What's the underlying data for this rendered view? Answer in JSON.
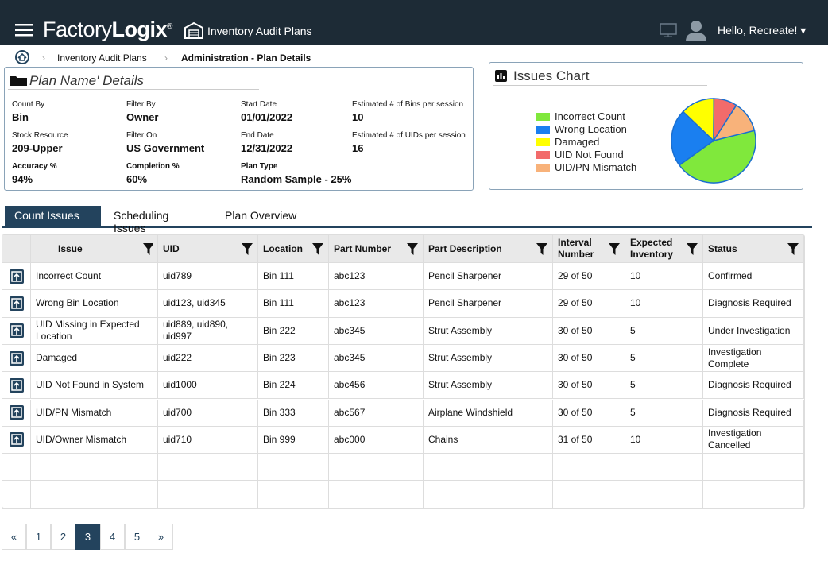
{
  "header": {
    "brand_light": "Factory",
    "brand_bold": "Logix",
    "brand_mark": "®",
    "page_title": "Inventory Audit Plans",
    "greeting": "Hello, Recreate!"
  },
  "breadcrumb": [
    "Inventory Audit Plans",
    "Administration - Plan Details"
  ],
  "plan": {
    "title": "Plan Name' Details",
    "fields": [
      {
        "label": "Count By",
        "value": "Bin"
      },
      {
        "label": "Filter By",
        "value": "Owner"
      },
      {
        "label": "Start Date",
        "value": "01/01/2022"
      },
      {
        "label": "Estimated # of Bins per session",
        "value": "10"
      },
      {
        "label": "Stock Resource",
        "value": "209-Upper"
      },
      {
        "label": "Filter On",
        "value": "US Government"
      },
      {
        "label": "End Date",
        "value": "12/31/2022"
      },
      {
        "label": "Estimated # of UIDs per session",
        "value": "16"
      },
      {
        "label": "Accuracy %",
        "value": "94%"
      },
      {
        "label": "Completion %",
        "value": "60%"
      },
      {
        "label": "Plan Type",
        "value": "Random Sample - 25%"
      }
    ]
  },
  "chart_data": {
    "type": "pie",
    "title": "Issues Chart",
    "categories": [
      "Incorrect Count",
      "Wrong Location",
      "Damaged",
      "UID Not Found",
      "UID/PN Mismatch"
    ],
    "values": [
      44,
      22,
      13,
      9,
      12
    ],
    "colors": [
      "#80e83c",
      "#1a7ff0",
      "#ffff00",
      "#f26b6b",
      "#f8b27a"
    ]
  },
  "tabs": [
    "Count Issues",
    "Scheduling Issues",
    "Plan Overview"
  ],
  "table": {
    "columns": [
      "Issue",
      "UID",
      "Location",
      "Part Number",
      "Part Description",
      "Interval Number",
      "Expected Inventory",
      "Status"
    ],
    "rows": [
      [
        "Incorrect Count",
        "uid789",
        "Bin 111",
        "abc123",
        "Pencil Sharpener",
        "29 of 50",
        "10",
        "Confirmed"
      ],
      [
        "Wrong Bin Location",
        "uid123, uid345",
        "Bin 111",
        "abc123",
        "Pencil Sharpener",
        "29 of 50",
        "10",
        "Diagnosis Required"
      ],
      [
        "UID Missing in Expected Location",
        "uid889, uid890, uid997",
        "Bin 222",
        "abc345",
        "Strut Assembly",
        "30 of 50",
        "5",
        "Under Investigation"
      ],
      [
        "Damaged",
        "uid222",
        "Bin 223",
        "abc345",
        "Strut Assembly",
        "30 of 50",
        "5",
        "Investigation Complete"
      ],
      [
        "UID Not Found in System",
        "uid1000",
        "Bin 224",
        "abc456",
        "Strut Assembly",
        "30 of 50",
        "5",
        "Diagnosis Required"
      ],
      [
        "UID/PN Mismatch",
        "uid700",
        "Bin 333",
        "abc567",
        "Airplane Windshield",
        "30 of 50",
        "5",
        "Diagnosis Required"
      ],
      [
        "UID/Owner Mismatch",
        "uid710",
        "Bin 999",
        "abc000",
        "Chains",
        "31 of 50",
        "10",
        "Investigation Cancelled"
      ]
    ]
  },
  "pagination": {
    "first": "«",
    "pages": [
      "1",
      "2",
      "3",
      "4",
      "5"
    ],
    "last": "»",
    "active": 2
  }
}
